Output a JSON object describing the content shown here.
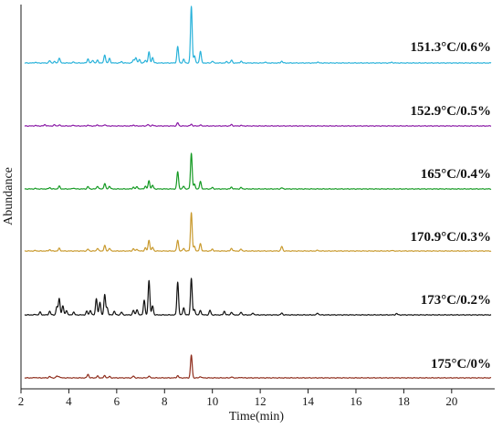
{
  "chart_data": {
    "type": "line",
    "title": "",
    "xlabel": "Time(min)",
    "ylabel": "Abundance",
    "xlim": [
      2,
      21.8
    ],
    "x_ticks": [
      2,
      4,
      6,
      8,
      10,
      12,
      14,
      16,
      18,
      20
    ],
    "grid": false,
    "legend": "inline labels at right of each trace",
    "series": [
      {
        "name": "151.3°C/0.6%",
        "color": "#29b2da",
        "peaks": [
          [
            2.6,
            0.8
          ],
          [
            3.2,
            2.5
          ],
          [
            3.4,
            1.5
          ],
          [
            3.6,
            5.5
          ],
          [
            4.2,
            1
          ],
          [
            4.8,
            4.5
          ],
          [
            5.0,
            3
          ],
          [
            5.2,
            3
          ],
          [
            5.5,
            9
          ],
          [
            5.7,
            5
          ],
          [
            6.2,
            1.5
          ],
          [
            6.7,
            3.5
          ],
          [
            6.8,
            6
          ],
          [
            6.95,
            4
          ],
          [
            7.2,
            3
          ],
          [
            7.35,
            12
          ],
          [
            7.5,
            6
          ],
          [
            8.55,
            18
          ],
          [
            8.8,
            4
          ],
          [
            9.12,
            62
          ],
          [
            9.25,
            8
          ],
          [
            9.5,
            13
          ],
          [
            10.0,
            2
          ],
          [
            10.6,
            1.5
          ],
          [
            10.8,
            3
          ],
          [
            11.2,
            2
          ],
          [
            12.2,
            1
          ],
          [
            12.9,
            2
          ],
          [
            14.4,
            1
          ],
          [
            17.5,
            0.8
          ]
        ]
      },
      {
        "name": "152.9°C/0.5%",
        "color": "#8a1aa6",
        "peaks": [
          [
            2.6,
            0.5
          ],
          [
            3.0,
            1.5
          ],
          [
            3.4,
            1.2
          ],
          [
            3.6,
            1
          ],
          [
            4.2,
            0.8
          ],
          [
            4.8,
            0.8
          ],
          [
            5.2,
            1.2
          ],
          [
            5.5,
            1.5
          ],
          [
            6.7,
            1
          ],
          [
            7.3,
            1.5
          ],
          [
            7.5,
            1
          ],
          [
            8.55,
            3.5
          ],
          [
            9.12,
            2
          ],
          [
            9.5,
            1
          ],
          [
            10.8,
            1.5
          ],
          [
            11.2,
            0.6
          ]
        ]
      },
      {
        "name": "165°C/0.4%",
        "color": "#159a23",
        "peaks": [
          [
            2.6,
            0.5
          ],
          [
            3.2,
            1.5
          ],
          [
            3.6,
            3
          ],
          [
            4.2,
            1
          ],
          [
            4.8,
            2.5
          ],
          [
            5.2,
            3
          ],
          [
            5.5,
            6
          ],
          [
            5.7,
            3
          ],
          [
            6.7,
            2
          ],
          [
            6.85,
            2.5
          ],
          [
            7.2,
            3
          ],
          [
            7.35,
            9
          ],
          [
            7.5,
            4
          ],
          [
            8.55,
            19
          ],
          [
            8.8,
            3
          ],
          [
            9.12,
            39
          ],
          [
            9.25,
            5
          ],
          [
            9.5,
            8
          ],
          [
            10.0,
            1.5
          ],
          [
            10.8,
            2
          ],
          [
            11.2,
            1.5
          ],
          [
            12.9,
            1.2
          ]
        ]
      },
      {
        "name": "170.9°C/0.3%",
        "color": "#c99a2e",
        "peaks": [
          [
            2.6,
            0.5
          ],
          [
            3.2,
            1.5
          ],
          [
            3.6,
            3
          ],
          [
            4.8,
            2
          ],
          [
            5.2,
            3
          ],
          [
            5.5,
            6
          ],
          [
            5.7,
            3
          ],
          [
            6.7,
            2.5
          ],
          [
            6.85,
            2
          ],
          [
            7.2,
            3.5
          ],
          [
            7.35,
            12
          ],
          [
            7.5,
            4
          ],
          [
            8.55,
            12
          ],
          [
            8.8,
            3
          ],
          [
            9.12,
            42
          ],
          [
            9.25,
            5
          ],
          [
            9.5,
            8
          ],
          [
            10.0,
            2
          ],
          [
            10.8,
            3
          ],
          [
            11.2,
            2
          ],
          [
            12.9,
            5
          ],
          [
            14.4,
            0.8
          ],
          [
            17.5,
            0.6
          ]
        ]
      },
      {
        "name": "173°C/0.2%",
        "color": "#111111",
        "peaks": [
          [
            2.6,
            0.5
          ],
          [
            2.8,
            3
          ],
          [
            3.2,
            4
          ],
          [
            3.5,
            9
          ],
          [
            3.6,
            18
          ],
          [
            3.75,
            10
          ],
          [
            3.9,
            5
          ],
          [
            4.2,
            3
          ],
          [
            4.75,
            4
          ],
          [
            4.9,
            5
          ],
          [
            5.15,
            18
          ],
          [
            5.3,
            14
          ],
          [
            5.5,
            22
          ],
          [
            5.6,
            8
          ],
          [
            5.9,
            4
          ],
          [
            6.2,
            3
          ],
          [
            6.7,
            5
          ],
          [
            6.85,
            6
          ],
          [
            7.15,
            16
          ],
          [
            7.35,
            38
          ],
          [
            7.5,
            10
          ],
          [
            8.55,
            36
          ],
          [
            8.8,
            8
          ],
          [
            9.12,
            40
          ],
          [
            9.25,
            6
          ],
          [
            9.5,
            5
          ],
          [
            9.9,
            5
          ],
          [
            10.5,
            4
          ],
          [
            10.8,
            3
          ],
          [
            11.2,
            3
          ],
          [
            11.7,
            2
          ],
          [
            12.9,
            2
          ],
          [
            14.4,
            2
          ],
          [
            17.7,
            1.5
          ]
        ]
      },
      {
        "name": "175°C/0%",
        "color": "#8e2c1b",
        "peaks": [
          [
            2.6,
            0.5
          ],
          [
            3.2,
            1.5
          ],
          [
            3.5,
            2
          ],
          [
            3.6,
            1.5
          ],
          [
            4.8,
            4
          ],
          [
            5.2,
            2
          ],
          [
            5.5,
            2.5
          ],
          [
            5.7,
            1.5
          ],
          [
            6.7,
            2
          ],
          [
            7.35,
            2
          ],
          [
            8.55,
            2.5
          ],
          [
            9.12,
            25
          ],
          [
            9.5,
            1.5
          ],
          [
            10.8,
            1
          ],
          [
            11.2,
            0.6
          ]
        ]
      }
    ]
  }
}
